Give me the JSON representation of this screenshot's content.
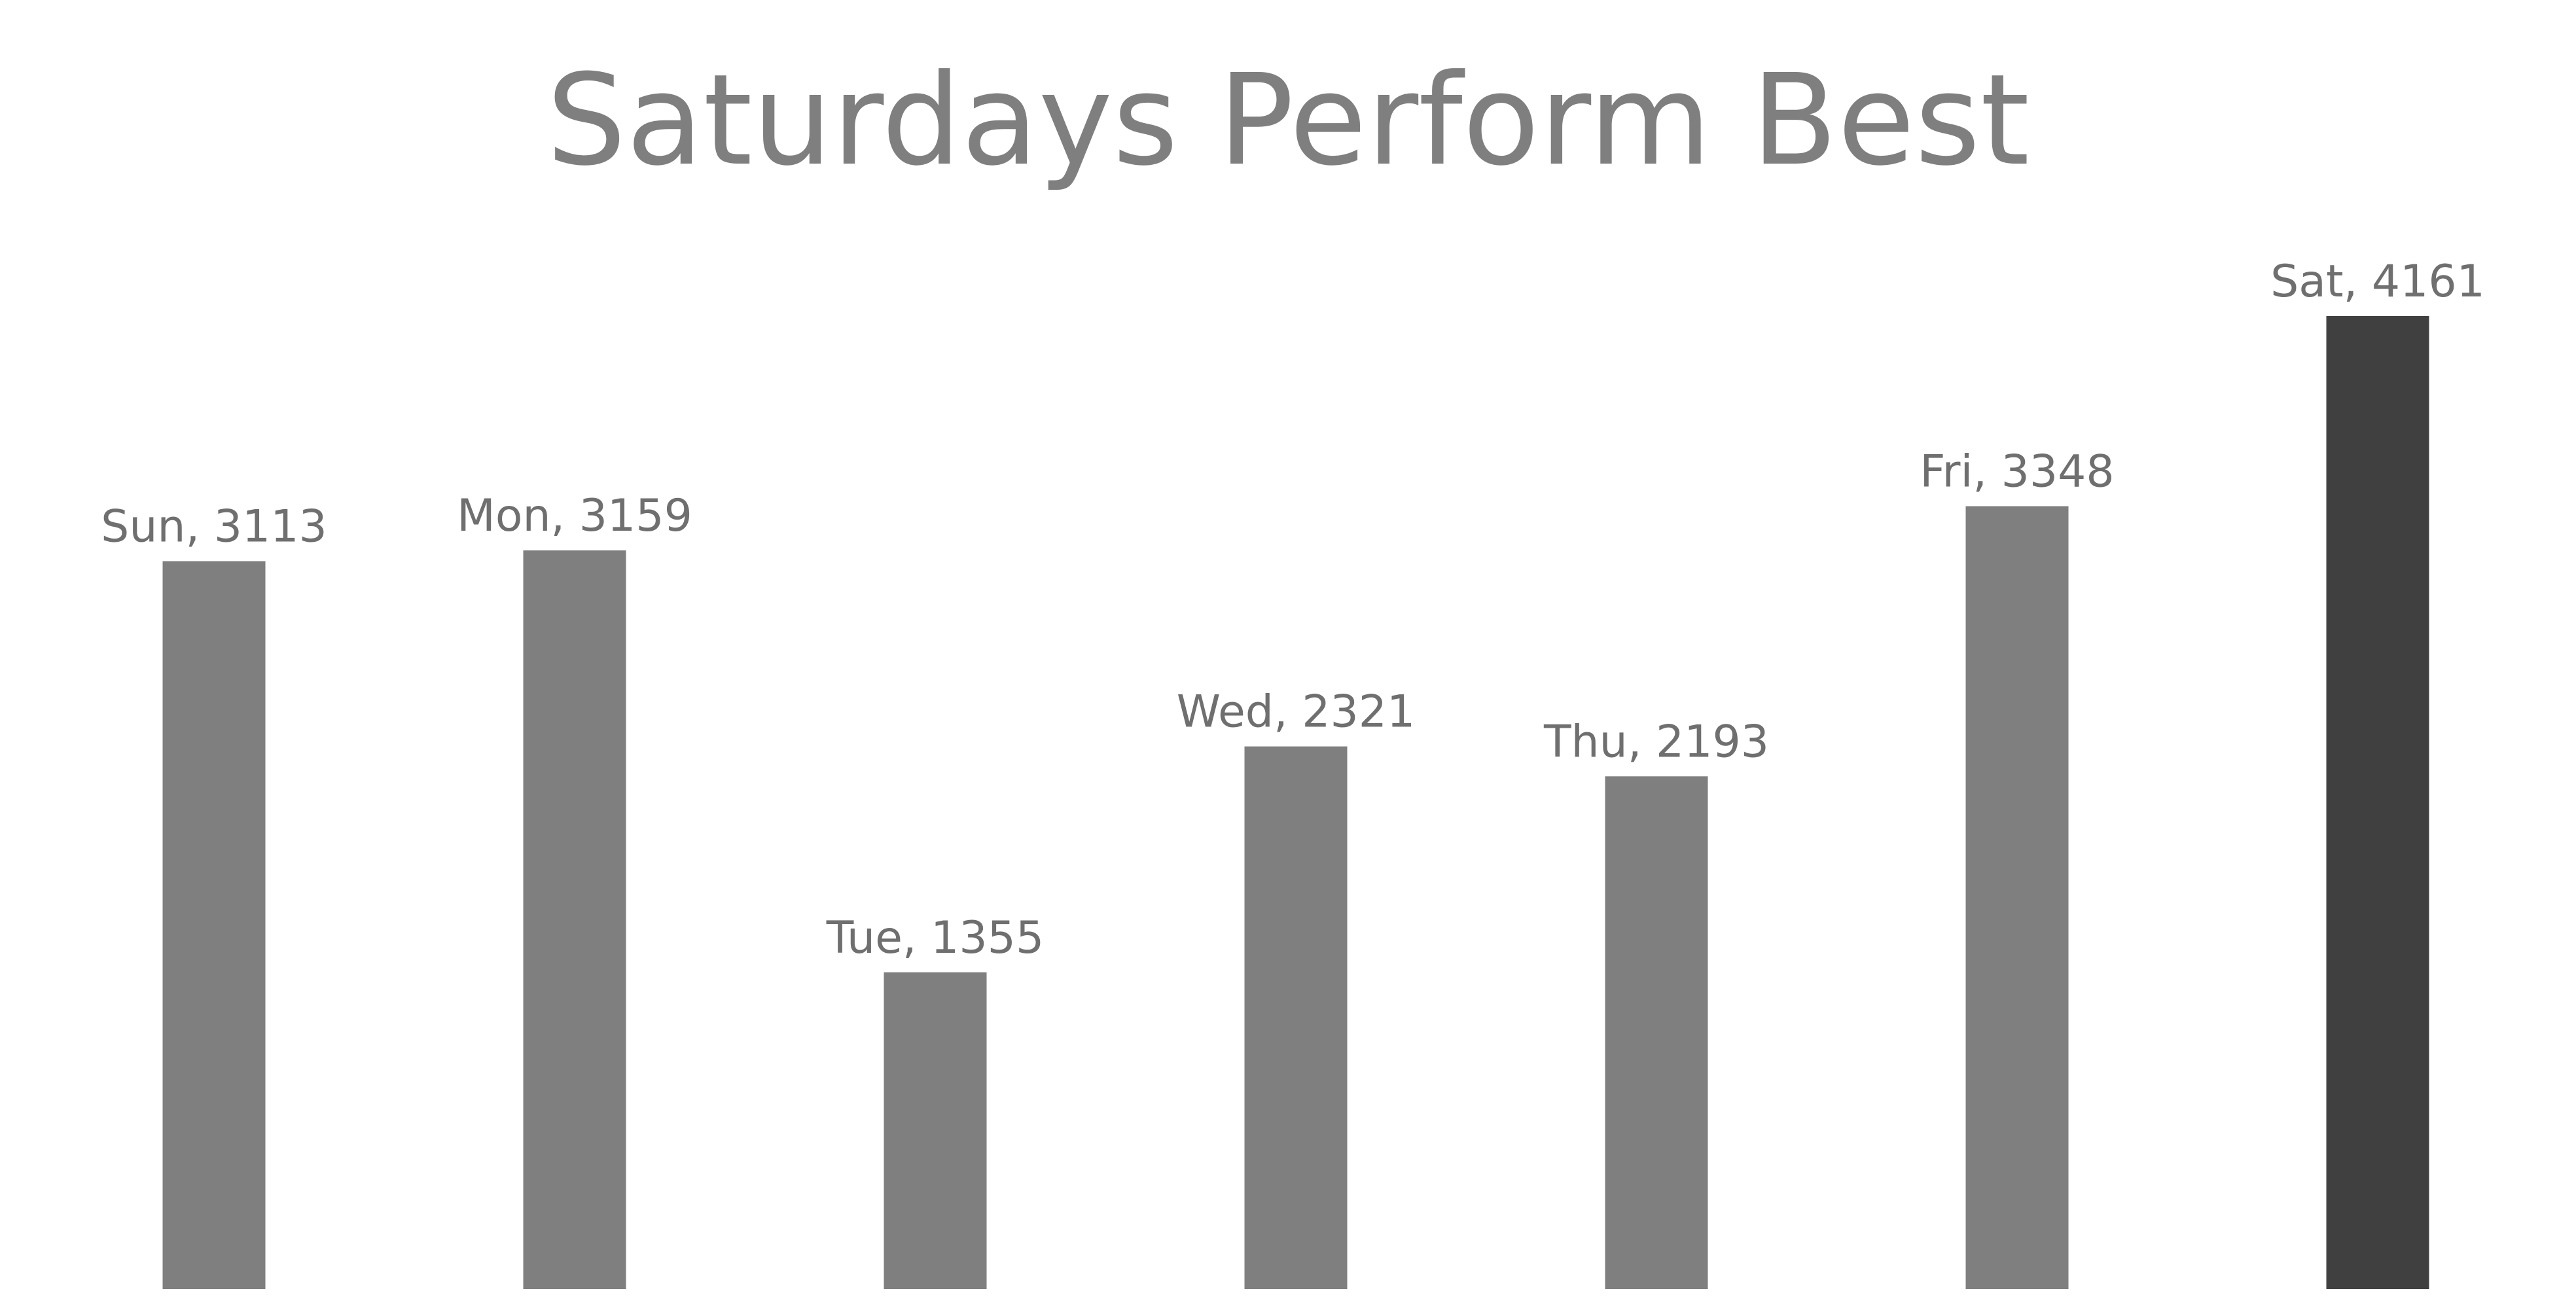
{
  "chart_data": {
    "type": "bar",
    "title": "Saturdays Perform Best",
    "categories": [
      "Sun",
      "Mon",
      "Tue",
      "Wed",
      "Thu",
      "Fri",
      "Sat"
    ],
    "values": [
      3113,
      3159,
      1355,
      2321,
      2193,
      3348,
      4161
    ],
    "data_labels": [
      "Sun, 3113",
      "Mon, 3159",
      "Tue, 1355",
      "Wed, 2321",
      "Thu, 2193",
      "Fri, 3348",
      "Sat, 4161"
    ],
    "highlight_category": "Sat",
    "colors": {
      "bar": "#7f7f7f",
      "highlight_bar": "#404040",
      "title": "#7f7f7f",
      "label": "#6f6f6f",
      "background": "#ffffff"
    },
    "ylim": [
      0,
      4161
    ],
    "grid": false,
    "legend": "none",
    "axes_visible": false
  }
}
